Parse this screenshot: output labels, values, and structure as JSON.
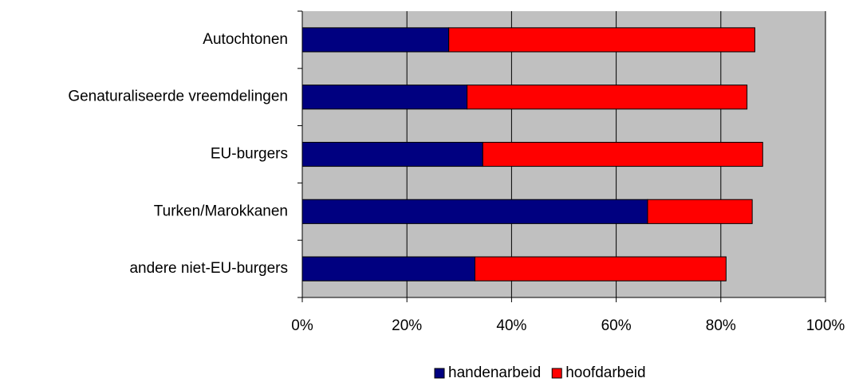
{
  "chart_data": {
    "type": "stacked-bar-horizontal",
    "categories": [
      "Autochtonen",
      "Genaturaliseerde vreemdelingen",
      "EU-burgers",
      "Turken/Marokkanen",
      "andere niet-EU-burgers"
    ],
    "series": [
      {
        "name": "handenarbeid",
        "color": "#000080",
        "values": [
          28,
          31.5,
          34.5,
          66,
          33
        ]
      },
      {
        "name": "hoofdarbeid",
        "color": "#ff0000",
        "values": [
          58.5,
          53.5,
          53.5,
          20,
          48
        ]
      }
    ],
    "xlim": [
      0,
      100
    ],
    "xticks": [
      {
        "value": 0,
        "label": "0%"
      },
      {
        "value": 20,
        "label": "20%"
      },
      {
        "value": 40,
        "label": "40%"
      },
      {
        "value": 60,
        "label": "60%"
      },
      {
        "value": 80,
        "label": "80%"
      },
      {
        "value": 100,
        "label": "100%"
      }
    ],
    "grid": true,
    "legend": "bottom",
    "background": "#c0c0c0"
  }
}
